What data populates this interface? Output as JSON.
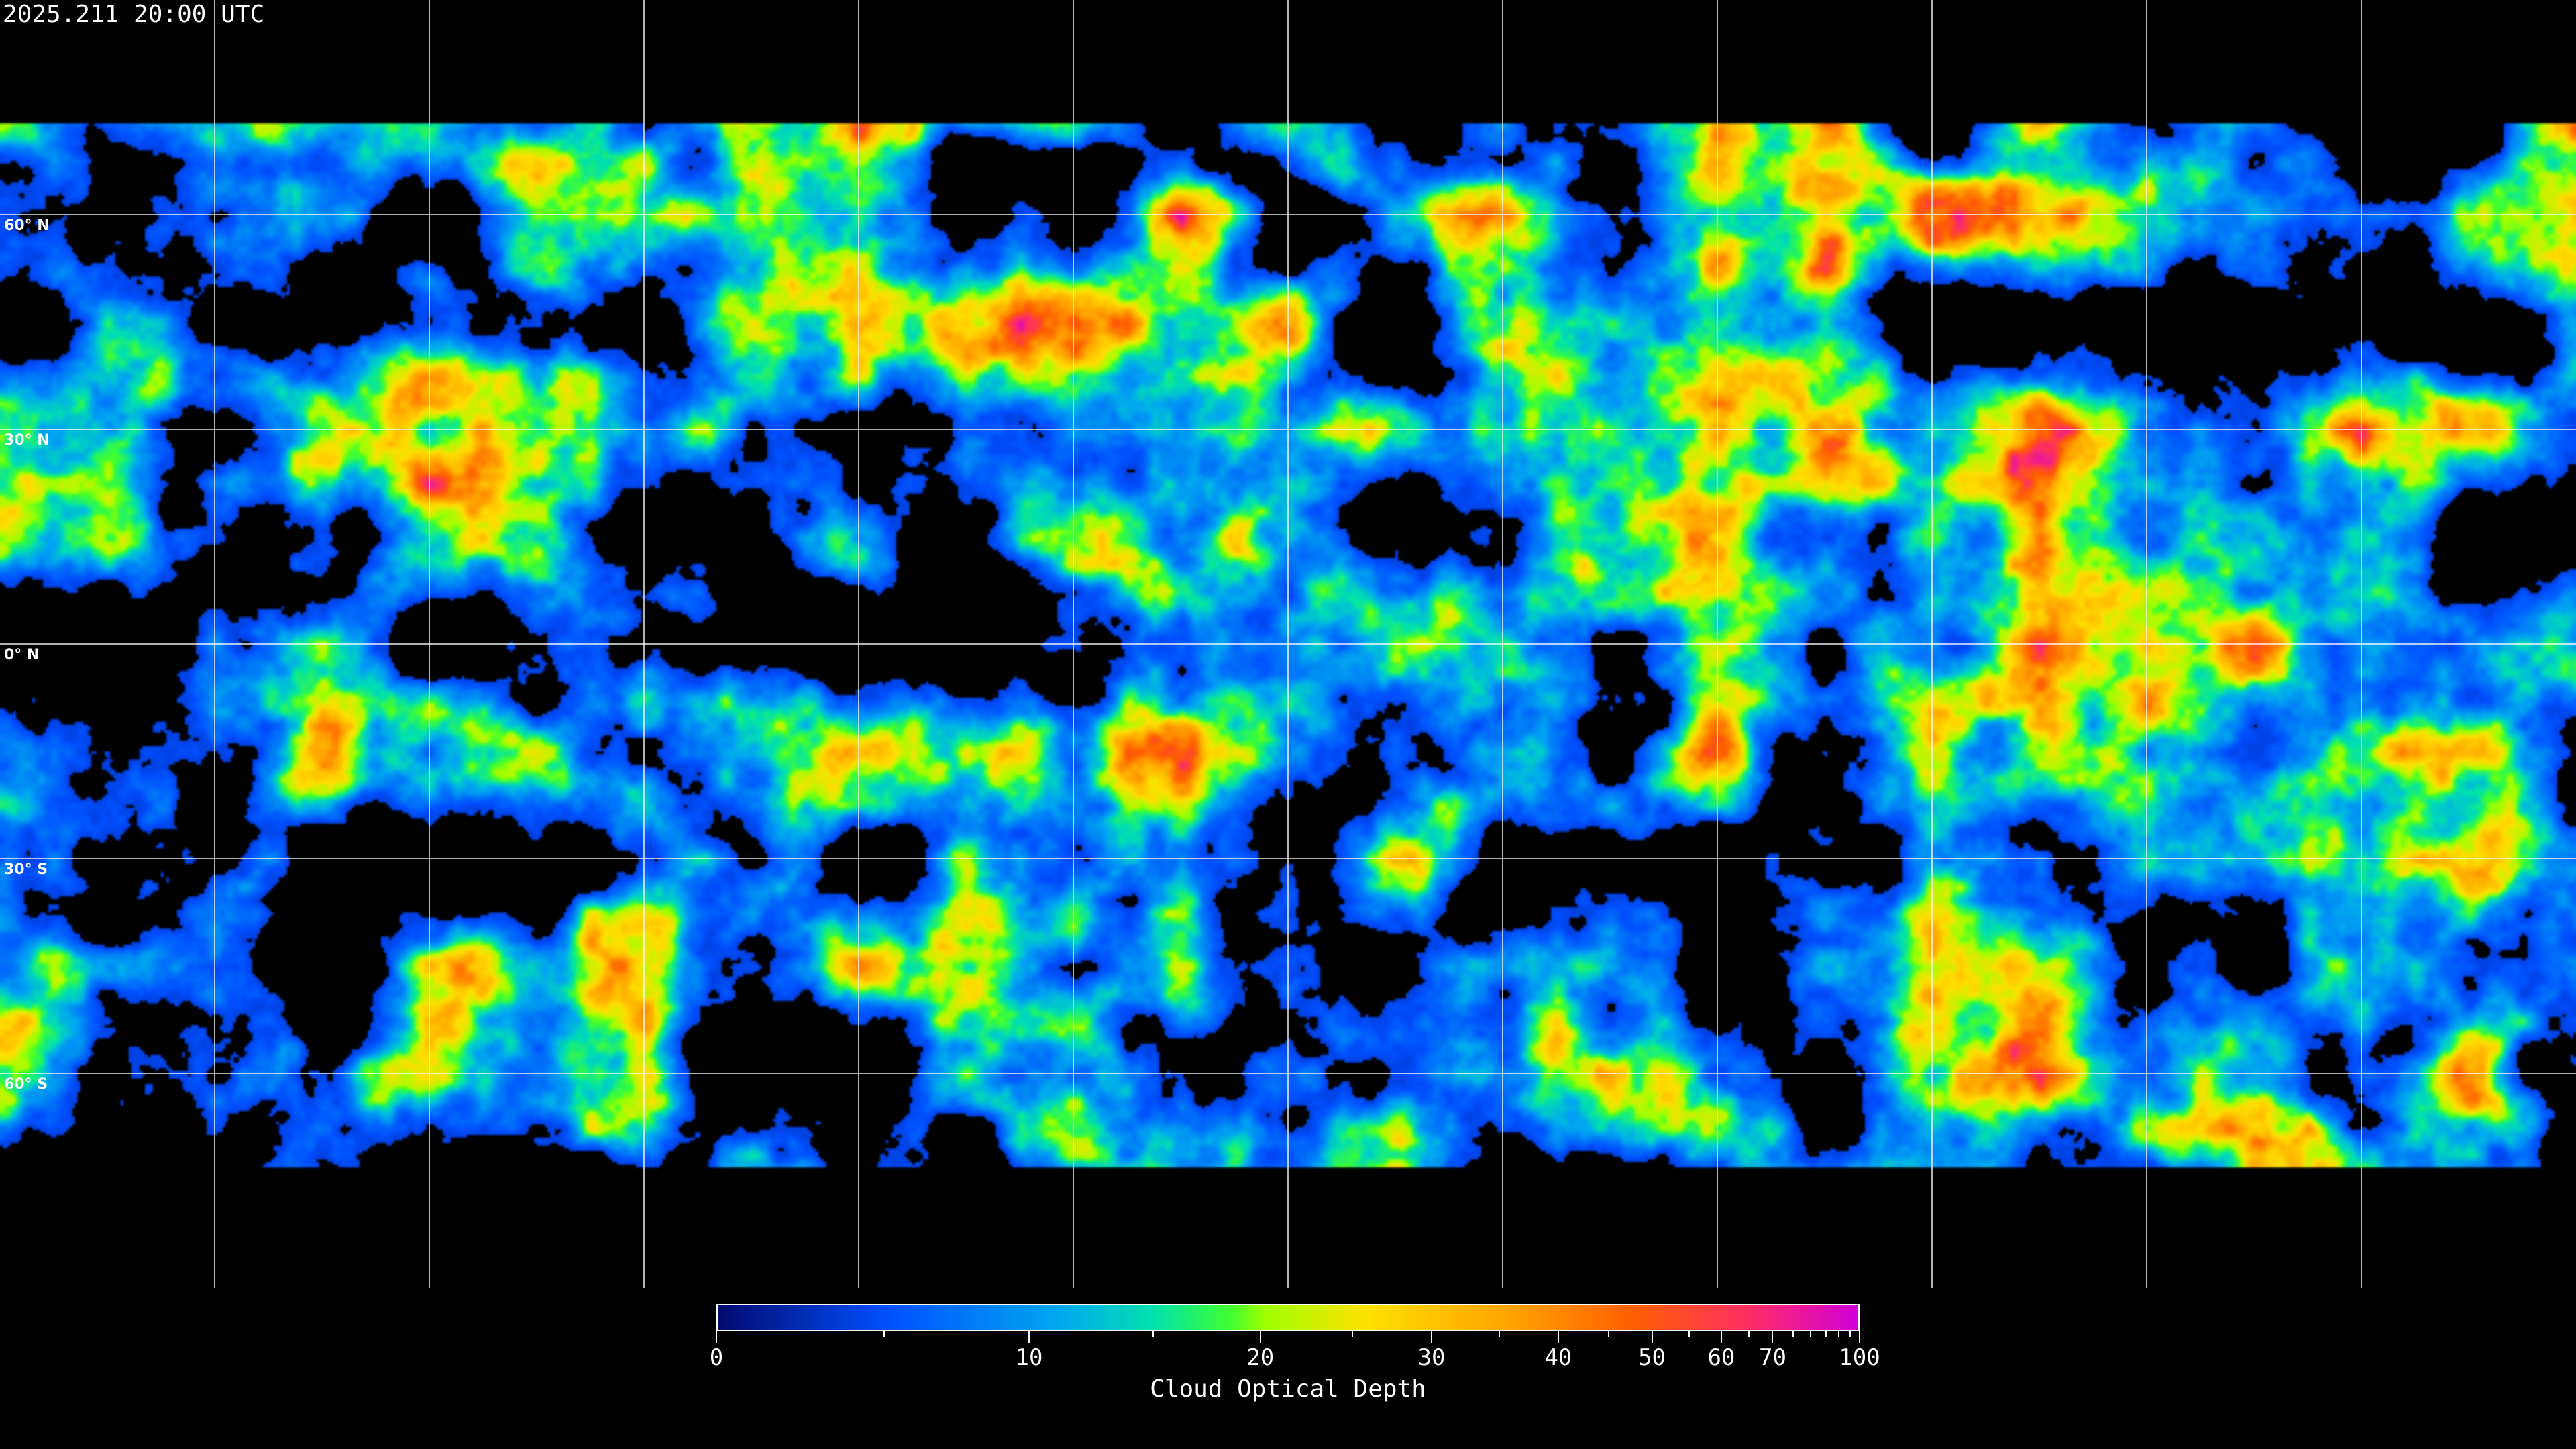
{
  "title": "2025.211 20:00 UTC",
  "map": {
    "projection": "equirectangular",
    "graticule_step_degrees": 30,
    "lat_labels": [
      "60° N",
      "30° N",
      "0° N",
      "30° S",
      "60° S"
    ],
    "lat_values": [
      60,
      30,
      0,
      -30,
      -60
    ],
    "grid_color": "#ffffff",
    "coastline_color": "#ffffff"
  },
  "colorbar": {
    "label": "Cloud Optical Depth",
    "min": 0,
    "max": 100,
    "ticks": [
      0,
      10,
      20,
      30,
      40,
      50,
      60,
      70,
      100
    ],
    "tick_labels": [
      "0",
      "10",
      "20",
      "30",
      "40",
      "50",
      "60",
      "70",
      "100"
    ],
    "minor_ticks": [
      5,
      15,
      25,
      35,
      45,
      55,
      65,
      75,
      80,
      85,
      90,
      95
    ],
    "colors": [
      "#000a6e",
      "#0050ff",
      "#00a8f0",
      "#00e0b0",
      "#40ff30",
      "#a0ff00",
      "#ffe000",
      "#ffa000",
      "#ff6000",
      "#ff3060",
      "#d000d8"
    ]
  }
}
